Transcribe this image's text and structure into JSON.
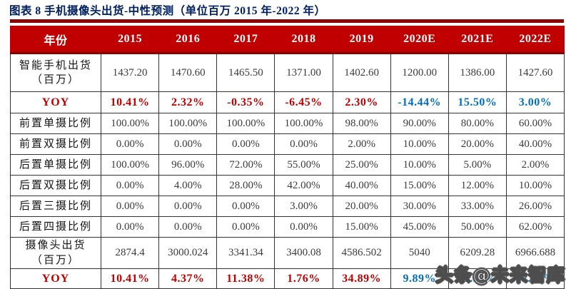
{
  "page": {
    "watermark": "头条@未来智库"
  },
  "colors": {
    "title_blue": "#002060",
    "header_red": "#C00000",
    "rule_dark_red": "#8B0000",
    "yoy_actual_red": "#C00000",
    "yoy_estimate_blue": "#0070C0",
    "cell_text_gray": "#3b3b3b",
    "border": "#333333"
  },
  "chart_data": {
    "type": "table",
    "title": "图表 8 手机摄像头出货-中性预测（单位百万 2015 年-2022 年）",
    "columns": [
      "年份",
      "2015",
      "2016",
      "2017",
      "2018",
      "2019",
      "2020E",
      "2021E",
      "2022E"
    ],
    "estimate_value_indices": [
      5,
      6,
      7
    ],
    "rows": [
      {
        "label": "智能手机出货\n（百万）",
        "type": "data",
        "values": [
          "1437.20",
          "1470.60",
          "1465.50",
          "1371.00",
          "1402.60",
          "1200.00",
          "1386.00",
          "1427.60"
        ]
      },
      {
        "label": "YOY",
        "type": "yoy",
        "values": [
          "10.41%",
          "2.32%",
          "-0.35%",
          "-6.45%",
          "2.30%",
          "-14.44%",
          "15.50%",
          "3.00%"
        ]
      },
      {
        "label": "前置单摄比例",
        "type": "data",
        "values": [
          "100.00%",
          "100.00%",
          "100.00%",
          "100.00%",
          "98.00%",
          "90.00%",
          "80.00%",
          "60.00%"
        ]
      },
      {
        "label": "前置双摄比例",
        "type": "data",
        "values": [
          "0.00%",
          "0.00%",
          "0.00%",
          "0.00%",
          "2.00%",
          "10.00%",
          "20.00%",
          "40.00%"
        ]
      },
      {
        "label": "后置单摄比例",
        "type": "data",
        "values": [
          "100.00%",
          "96.00%",
          "72.00%",
          "55.00%",
          "25.00%",
          "10.00%",
          "5.00%",
          "2.00%"
        ]
      },
      {
        "label": "后置双摄比例",
        "type": "data",
        "values": [
          "0.00%",
          "4.00%",
          "28.00%",
          "42.00%",
          "40.00%",
          "15.00%",
          "12.00%",
          "10.00%"
        ]
      },
      {
        "label": "后置三摄比例",
        "type": "data",
        "values": [
          "0.00%",
          "0.00%",
          "0.00%",
          "3.00%",
          "20.00%",
          "30.00%",
          "33.00%",
          "26.00%"
        ]
      },
      {
        "label": "后置四摄比例",
        "type": "data",
        "values": [
          "0.00%",
          "0.00%",
          "0.00%",
          "0.00%",
          "15.00%",
          "45.00%",
          "50.00%",
          "62.00%"
        ]
      },
      {
        "label": "摄像头出货\n（百万）",
        "type": "data",
        "values": [
          "2874.4",
          "3000.024",
          "3341.34",
          "3400.08",
          "4586.502",
          "5040",
          "6209.28",
          "6966.688"
        ]
      },
      {
        "label": "YOY",
        "type": "yoy",
        "values": [
          "10.41%",
          "4.37%",
          "11.38%",
          "1.76%",
          "34.89%",
          "9.89%",
          "23.20%",
          "12.20%"
        ]
      }
    ]
  }
}
